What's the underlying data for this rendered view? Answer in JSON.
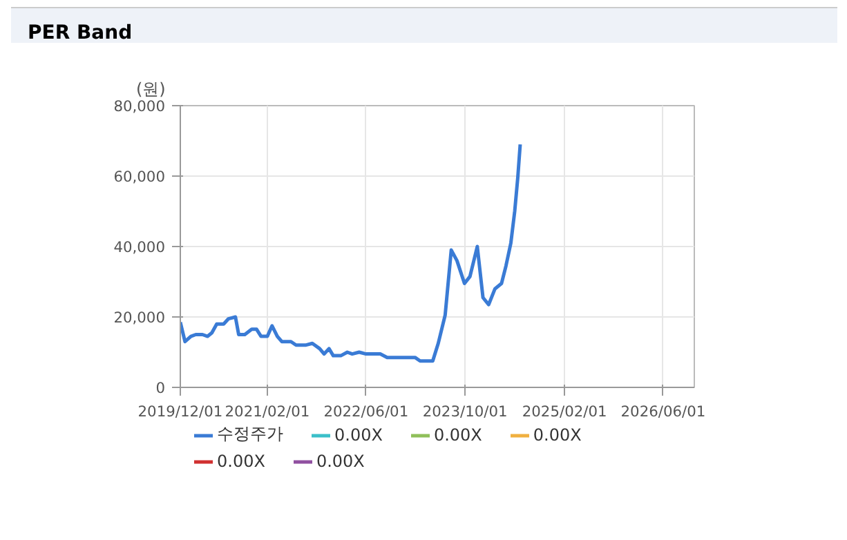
{
  "chart_data": {
    "type": "line",
    "title": "PER Band",
    "ylabel": "(원)",
    "x": [
      "2019-12-01",
      "2019-12-24",
      "2020-01-22",
      "2020-02-15",
      "2020-03-19",
      "2020-04-13",
      "2020-05-04",
      "2020-05-28",
      "2020-07-01",
      "2020-07-25",
      "2020-08-28",
      "2020-09-13",
      "2020-10-13",
      "2020-11-16",
      "2020-12-10",
      "2021-01-01",
      "2021-02-01",
      "2021-02-24",
      "2021-03-22",
      "2021-04-13",
      "2021-05-28",
      "2021-06-22",
      "2021-08-07",
      "2021-09-10",
      "2021-10-16",
      "2021-11-07",
      "2021-12-01",
      "2021-12-22",
      "2022-01-28",
      "2022-03-01",
      "2022-03-25",
      "2022-04-28",
      "2022-06-01",
      "2022-08-10",
      "2022-09-13",
      "2023-01-28",
      "2023-02-22",
      "2023-04-25",
      "2023-05-22",
      "2023-06-25",
      "2023-07-25",
      "2023-08-22",
      "2023-09-28",
      "2023-10-25",
      "2023-11-30",
      "2023-12-28",
      "2024-01-25",
      "2024-02-25",
      "2024-03-28",
      "2024-04-19",
      "2024-05-13",
      "2024-06-01",
      "2024-06-16",
      "2024-06-28"
    ],
    "series": [
      {
        "name": "수정주가",
        "color": "#3a7bd5",
        "values": [
          18500,
          13000,
          14500,
          15000,
          15000,
          14500,
          15500,
          18000,
          18000,
          19500,
          20000,
          15000,
          15000,
          16500,
          16500,
          14500,
          14500,
          17500,
          14500,
          13000,
          13000,
          12000,
          12000,
          12500,
          11000,
          9500,
          11000,
          9000,
          9000,
          10000,
          9500,
          10000,
          9500,
          9500,
          8500,
          8500,
          7500,
          7500,
          12500,
          20500,
          39000,
          36000,
          29500,
          31500,
          40000,
          25500,
          23500,
          28000,
          29500,
          34500,
          41000,
          50000,
          59500,
          69000
        ]
      },
      {
        "name": "0.00X",
        "color": "#3bbfc9",
        "values": [
          null,
          null,
          null,
          null,
          null,
          null,
          null,
          null,
          null,
          null,
          null,
          null,
          null,
          null,
          null,
          null,
          null,
          null,
          null,
          null,
          null,
          null,
          null,
          null,
          null,
          null,
          null,
          null,
          null,
          null,
          null,
          null,
          null,
          null,
          null,
          null,
          null,
          null,
          null,
          null,
          null,
          null,
          null,
          null,
          null,
          null,
          null,
          null,
          null,
          null,
          null,
          null,
          null,
          null
        ]
      },
      {
        "name": "0.00X",
        "color": "#8fbf5a",
        "values": [
          null,
          null,
          null,
          null,
          null,
          null,
          null,
          null,
          null,
          null,
          null,
          null,
          null,
          null,
          null,
          null,
          null,
          null,
          null,
          null,
          null,
          null,
          null,
          null,
          null,
          null,
          null,
          null,
          null,
          null,
          null,
          null,
          null,
          null,
          null,
          null,
          null,
          null,
          null,
          null,
          null,
          null,
          null,
          null,
          null,
          null,
          null,
          null,
          null,
          null,
          null,
          null,
          null,
          null
        ]
      },
      {
        "name": "0.00X",
        "color": "#f0b040",
        "values": [
          null,
          null,
          null,
          null,
          null,
          null,
          null,
          null,
          null,
          null,
          null,
          null,
          null,
          null,
          null,
          null,
          null,
          null,
          null,
          null,
          null,
          null,
          null,
          null,
          null,
          null,
          null,
          null,
          null,
          null,
          null,
          null,
          null,
          null,
          null,
          null,
          null,
          null,
          null,
          null,
          null,
          null,
          null,
          null,
          null,
          null,
          null,
          null,
          null,
          null,
          null,
          null,
          null,
          null
        ]
      },
      {
        "name": "0.00X",
        "color": "#d03030",
        "values": [
          null,
          null,
          null,
          null,
          null,
          null,
          null,
          null,
          null,
          null,
          null,
          null,
          null,
          null,
          null,
          null,
          null,
          null,
          null,
          null,
          null,
          null,
          null,
          null,
          null,
          null,
          null,
          null,
          null,
          null,
          null,
          null,
          null,
          null,
          null,
          null,
          null,
          null,
          null,
          null,
          null,
          null,
          null,
          null,
          null,
          null,
          null,
          null,
          null,
          null,
          null,
          null,
          null,
          null
        ]
      },
      {
        "name": "0.00X",
        "color": "#9050a0",
        "values": [
          null,
          null,
          null,
          null,
          null,
          null,
          null,
          null,
          null,
          null,
          null,
          null,
          null,
          null,
          null,
          null,
          null,
          null,
          null,
          null,
          null,
          null,
          null,
          null,
          null,
          null,
          null,
          null,
          null,
          null,
          null,
          null,
          null,
          null,
          null,
          null,
          null,
          null,
          null,
          null,
          null,
          null,
          null,
          null,
          null,
          null,
          null,
          null,
          null,
          null,
          null,
          null,
          null,
          null
        ]
      }
    ],
    "xlim": [
      "2019-12-01",
      "2026-11-01"
    ],
    "xticks": [
      {
        "value": "2019-12-01",
        "label": "2019/12/01"
      },
      {
        "value": "2021-02-01",
        "label": "2021/02/01"
      },
      {
        "value": "2022-06-01",
        "label": "2022/06/01"
      },
      {
        "value": "2023-10-01",
        "label": "2023/10/01"
      },
      {
        "value": "2025-02-01",
        "label": "2025/02/01"
      },
      {
        "value": "2026-06-01",
        "label": "2026/06/01"
      }
    ],
    "ylim": [
      0,
      80000
    ],
    "yticks": [
      0,
      {
        "value": 20000,
        "label": "20,000"
      },
      {
        "value": 40000,
        "label": "40,000"
      },
      {
        "value": 60000,
        "label": "60,000"
      },
      {
        "value": 80000,
        "label": "80,000"
      }
    ],
    "grid": true,
    "legend": "bottom",
    "marker": "none",
    "line_style": "solid"
  }
}
